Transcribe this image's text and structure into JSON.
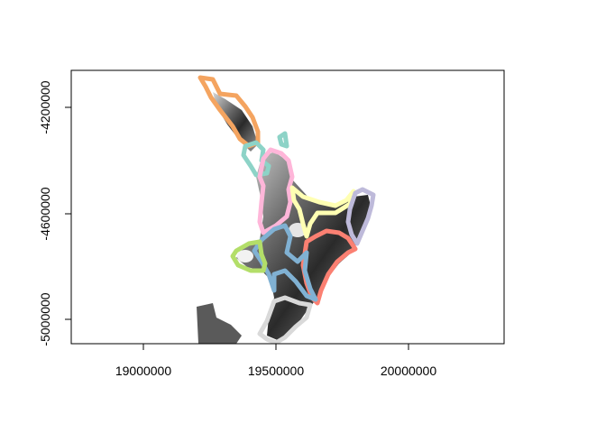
{
  "map": {
    "x_ticks": [
      {
        "value": 19000000,
        "label": "19000000"
      },
      {
        "value": 19500000,
        "label": "19500000"
      },
      {
        "value": 20000000,
        "label": "20000000"
      }
    ],
    "y_ticks": [
      {
        "value": -4200000,
        "label": "-4200000"
      },
      {
        "value": -4600000,
        "label": "-4600000"
      },
      {
        "value": -5000000,
        "label": "-5000000"
      }
    ],
    "x_range": [
      18730000,
      20360000
    ],
    "y_range": [
      -5095000,
      -4080000
    ],
    "raster": "grayscale elevation shading of the North Island, New Zealand",
    "region_outline_colors": [
      "#f4a460",
      "#8dd3c7",
      "#ffb6d9",
      "#ffffb3",
      "#bebada",
      "#fb8072",
      "#80b1d3",
      "#b3de69",
      "#d9d9d9"
    ]
  }
}
